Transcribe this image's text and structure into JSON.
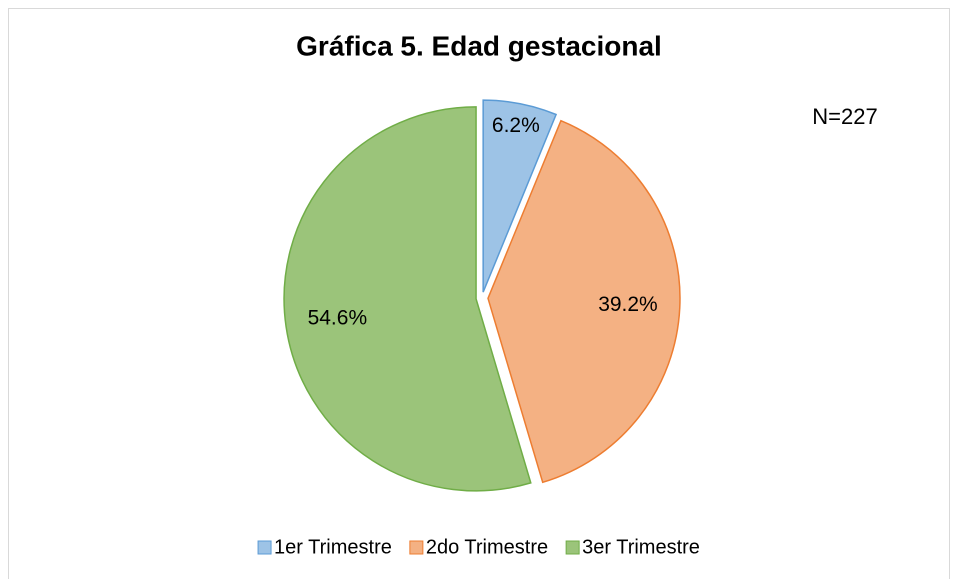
{
  "chart_data": {
    "type": "pie",
    "title": "Gráfica 5. Edad gestacional",
    "annotation": "N=227",
    "categories": [
      "1er Trimestre",
      "2do Trimestre",
      "3er Trimestre"
    ],
    "values": [
      6.2,
      39.2,
      54.6
    ],
    "value_labels": [
      "6.2%",
      "39.2%",
      "54.6%"
    ],
    "colors": [
      "#9dc3e6",
      "#f4b183",
      "#9bc47a"
    ],
    "edge_colors": [
      "#5b9bd5",
      "#ed7d31",
      "#70ad47"
    ],
    "legend": "bottom"
  }
}
